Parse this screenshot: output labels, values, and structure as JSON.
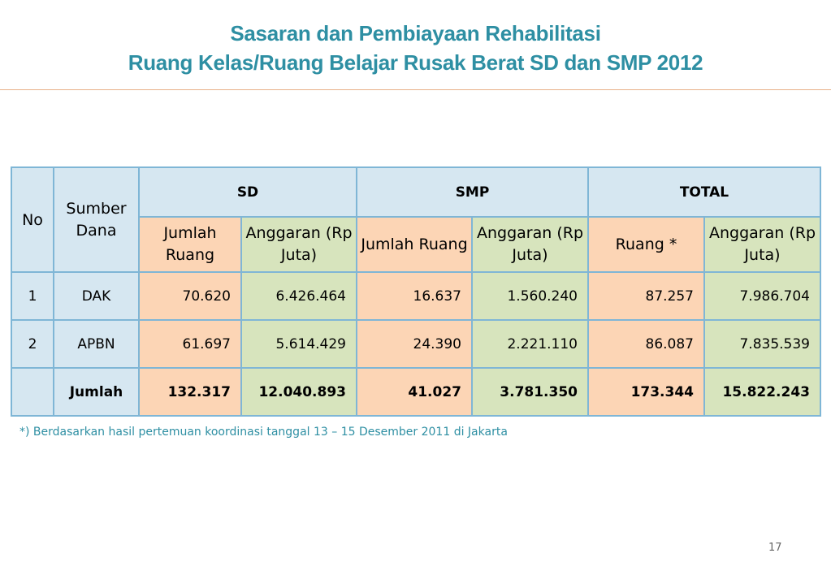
{
  "title": {
    "line1": "Sasaran dan Pembiayaan Rehabilitasi",
    "line2": "Ruang Kelas/Ruang Belajar  Rusak Berat SD dan SMP 2012"
  },
  "table": {
    "headers": {
      "no": "No",
      "sumber_dana": "Sumber Dana",
      "sd": "SD",
      "smp": "SMP",
      "total": "TOTAL"
    },
    "sub_headers": {
      "sd_jumlah": "Jumlah Ruang",
      "sd_anggaran": "Anggaran (Rp Juta)",
      "smp_jumlah": "Jumlah Ruang",
      "smp_anggaran": "Anggaran (Rp Juta)",
      "total_ruang": "Ruang *",
      "total_anggaran": "Anggaran (Rp Juta)"
    },
    "rows": [
      {
        "no": "1",
        "sumber": "DAK",
        "sd_jumlah": "70.620",
        "sd_anggaran": "6.426.464",
        "smp_jumlah": "16.637",
        "smp_anggaran": "1.560.240",
        "total_ruang": "87.257",
        "total_anggaran": "7.986.704"
      },
      {
        "no": "2",
        "sumber": "APBN",
        "sd_jumlah": "61.697",
        "sd_anggaran": "5.614.429",
        "smp_jumlah": "24.390",
        "smp_anggaran": "2.221.110",
        "total_ruang": "86.087",
        "total_anggaran": "7.835.539"
      },
      {
        "no": "",
        "sumber": "Jumlah",
        "sd_jumlah": "132.317",
        "sd_anggaran": "12.040.893",
        "smp_jumlah": "41.027",
        "smp_anggaran": "3.781.350",
        "total_ruang": "173.344",
        "total_anggaran": "15.822.243"
      }
    ]
  },
  "footnote": "*) Berdasarkan hasil pertemuan koordinasi tanggal 13 – 15 Desember 2011 di Jakarta",
  "page_number": "17",
  "colors": {
    "title": "#2e8fa3",
    "header_bg": "#d6e7f1",
    "peach": "#fcd5b5",
    "green": "#d7e4bd",
    "border": "#7fb6d6"
  }
}
